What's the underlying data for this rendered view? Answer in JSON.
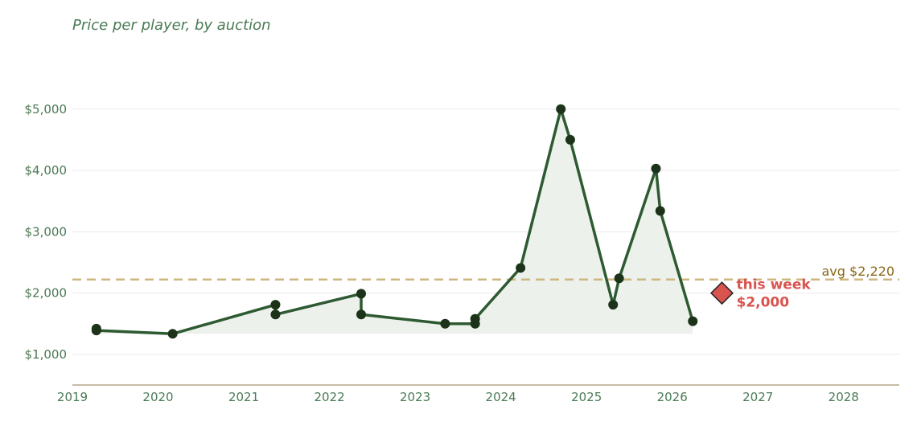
{
  "colors": {
    "title": "#4a7a55",
    "tick": "#4a7a55",
    "grid": "#e9e9e9",
    "axis": "#b5a58a",
    "line": "#2e5a32",
    "point": "#1c3319",
    "area": "#edf1ec",
    "avg_line": "#cdb67f",
    "avg_text": "#8a6a1a",
    "highlight": "#d9534f",
    "highlight_stroke": "#222222"
  },
  "chart_data": {
    "type": "line",
    "title": "Price per player, by auction",
    "xlabel": "",
    "ylabel": "",
    "x_ticks": [
      "2019",
      "2020",
      "2021",
      "2022",
      "2023",
      "2024",
      "2025",
      "2026",
      "2027",
      "2028"
    ],
    "y_ticks": [
      "$1,000",
      "$2,000",
      "$3,000",
      "$4,000",
      "$5,000"
    ],
    "xlim": [
      2019.0,
      2028.65
    ],
    "ylim": [
      500,
      5600
    ],
    "y_tick_values": [
      1000,
      2000,
      3000,
      4000,
      5000
    ],
    "x_tick_values": [
      2019,
      2020,
      2021,
      2022,
      2023,
      2024,
      2025,
      2026,
      2027,
      2028
    ],
    "grid": "horizontal",
    "series": [
      {
        "points": [
          {
            "x": 2019.28,
            "y": 1420
          },
          {
            "x": 2019.28,
            "y": 1390
          },
          {
            "x": 2020.17,
            "y": 1335
          },
          {
            "x": 2021.37,
            "y": 1810
          },
          {
            "x": 2021.37,
            "y": 1650
          },
          {
            "x": 2022.37,
            "y": 1990
          },
          {
            "x": 2022.37,
            "y": 1650
          },
          {
            "x": 2023.35,
            "y": 1500
          },
          {
            "x": 2023.7,
            "y": 1500
          },
          {
            "x": 2023.7,
            "y": 1580
          },
          {
            "x": 2024.23,
            "y": 2410
          },
          {
            "x": 2024.7,
            "y": 5000
          },
          {
            "x": 2024.81,
            "y": 4500
          },
          {
            "x": 2025.31,
            "y": 1810
          },
          {
            "x": 2025.38,
            "y": 2240
          },
          {
            "x": 2025.81,
            "y": 4030
          },
          {
            "x": 2025.86,
            "y": 3340
          },
          {
            "x": 2026.24,
            "y": 1540
          }
        ]
      }
    ],
    "average": {
      "y": 2220,
      "label": "avg $2,220"
    },
    "highlight": {
      "x": 2026.58,
      "y": 2000,
      "label_line1": "this week",
      "label_line2": "$2,000"
    }
  }
}
